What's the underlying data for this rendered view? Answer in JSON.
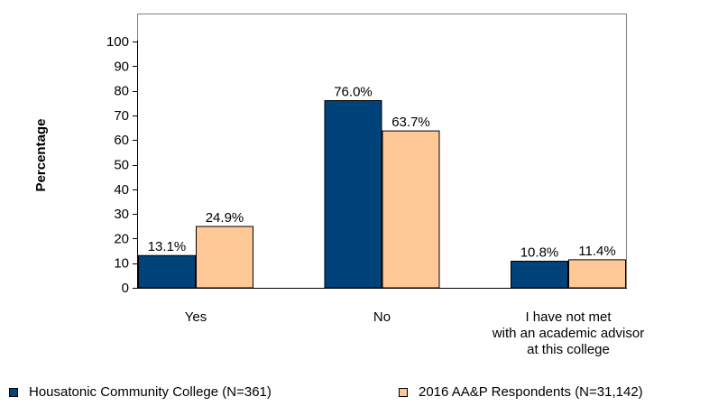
{
  "chart_data": {
    "type": "bar",
    "ylabel": "Percentage",
    "xlabel": "",
    "ylim": [
      0,
      100
    ],
    "yticks": [
      0,
      10,
      20,
      30,
      40,
      50,
      60,
      70,
      80,
      90,
      100
    ],
    "grid": false,
    "legend_position": "bottom",
    "categories": [
      [
        "Yes"
      ],
      [
        "No"
      ],
      [
        "I have not met",
        "with an academic advisor",
        "at this college"
      ]
    ],
    "series": [
      {
        "name": "Housatonic Community College (N=361)",
        "color": "#00427A",
        "values": [
          13.1,
          76.0,
          10.8
        ],
        "labels": [
          "13.1%",
          "76.0%",
          "10.8%"
        ]
      },
      {
        "name": "2016 AA&P Respondents (N=31,142)",
        "color": "#FFC897",
        "values": [
          24.9,
          63.7,
          11.4
        ],
        "labels": [
          "24.9%",
          "63.7%",
          "11.4%"
        ]
      }
    ]
  }
}
